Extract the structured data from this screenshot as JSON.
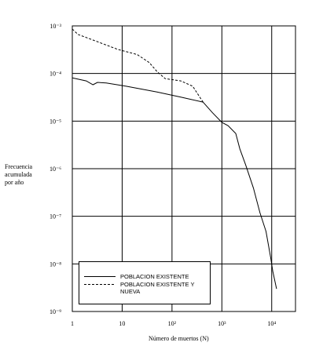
{
  "chart_data": {
    "type": "line",
    "ylabel": [
      "Frecuencia",
      "acumulada",
      "por año"
    ],
    "xlabel": "Número de muertos (N)",
    "log_x": true,
    "log_y": true,
    "grid": true,
    "xlim": [
      1,
      30000
    ],
    "xticks": [
      1,
      10,
      {
        "value": 100,
        "label": "10²"
      },
      {
        "value": 1000,
        "label": "10³"
      },
      {
        "value": 10000,
        "label": "10⁴"
      }
    ],
    "ylim": [
      1e-09,
      0.001
    ],
    "yticks": [
      {
        "value": 1e-09,
        "label": "10⁻⁹"
      },
      {
        "value": 1e-08,
        "label": "10⁻⁸"
      },
      {
        "value": 1e-07,
        "label": "10⁻⁷"
      },
      {
        "value": 1e-06,
        "label": "10⁻⁶"
      },
      {
        "value": 1e-05,
        "label": "10⁻⁵"
      },
      {
        "value": 0.0001,
        "label": "10⁻⁴"
      },
      {
        "value": 0.001,
        "label": "10⁻³"
      }
    ],
    "legend": "lower-left",
    "series": [
      {
        "name": "POBLACION EXISTENTE",
        "color": "#000000",
        "dash": false,
        "x": [
          1,
          1.9,
          2.6,
          3.2,
          4.8,
          12,
          50,
          150,
          420,
          650,
          1000,
          1330,
          1900,
          2300,
          3000,
          4300,
          5800,
          7700,
          9600,
          10500,
          12500
        ],
        "values": [
          8.1e-05,
          7e-05,
          5.8e-05,
          6.5e-05,
          6.3e-05,
          5.4e-05,
          4.1e-05,
          3.2e-05,
          2.5e-05,
          1.5e-05,
          9.4e-06,
          8e-06,
          5.5e-06,
          2.6e-06,
          1.2e-06,
          3.9e-07,
          1.2e-07,
          4.8e-08,
          1.3e-08,
          7e-09,
          3e-09
        ]
      },
      {
        "name": "POBLACION EXISTENTE Y NUEVA",
        "color": "#000000",
        "dash": true,
        "x": [
          1,
          1.3,
          2.8,
          8.2,
          20,
          35,
          50,
          73,
          150,
          260,
          420
        ],
        "values": [
          0.00086,
          0.00066,
          0.00049,
          0.00032,
          0.00025,
          0.00017,
          0.00011,
          7.8e-05,
          7e-05,
          5.4e-05,
          2.5e-05
        ]
      }
    ]
  }
}
